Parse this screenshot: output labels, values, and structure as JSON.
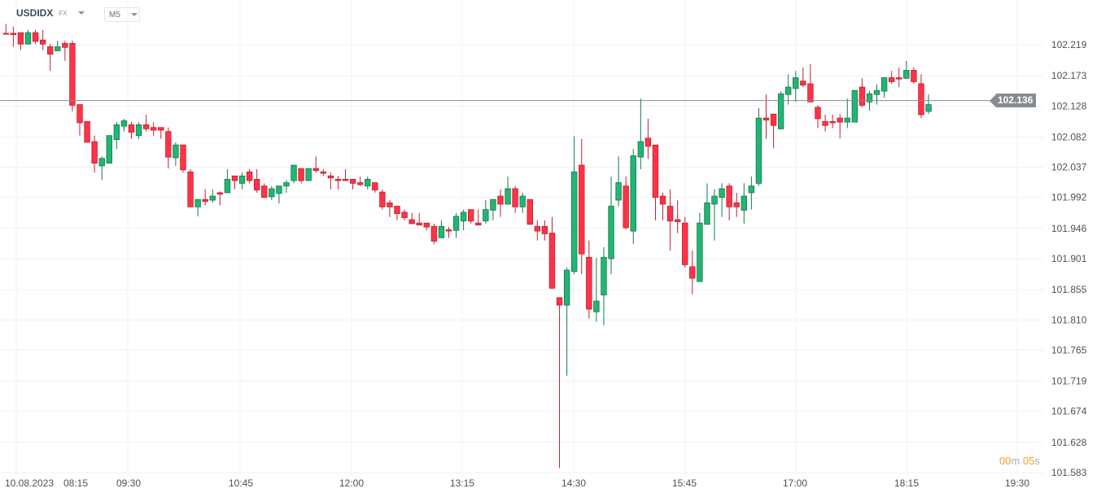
{
  "header": {
    "symbol": "USDIDX",
    "market": "FX",
    "timeframe": "M5"
  },
  "timer": {
    "minutes": "00",
    "m": "m",
    "seconds": "05",
    "s": "s"
  },
  "current_price": "102.136",
  "colors": {
    "up": "#22b573",
    "up_border": "#137a4c",
    "down": "#ff3347",
    "down_border": "#c01f2f",
    "price_line": "#858d92",
    "timer": "#f7a21b",
    "grid": "#f0f1f2"
  },
  "chart_data": {
    "type": "candlestick",
    "interval": "M5",
    "date": "10.08.2023",
    "x_tick_labels": [
      "10.08.2023",
      "08:15",
      "09:30",
      "10:45",
      "12:00",
      "13:15",
      "14:30",
      "15:45",
      "17:00",
      "18:15",
      "19:30"
    ],
    "y_tick_labels": [
      "102.219",
      "102.173",
      "102.128",
      "102.082",
      "102.037",
      "101.992",
      "101.946",
      "101.901",
      "101.855",
      "101.810",
      "101.765",
      "101.719",
      "101.674",
      "101.628",
      "101.583"
    ],
    "ylim": [
      101.583,
      102.219
    ],
    "grid": true,
    "last_price": 102.136,
    "ohlc_fields": [
      "open",
      "high",
      "low",
      "close"
    ],
    "candles": [
      [
        102.236,
        102.25,
        102.235,
        102.235
      ],
      [
        102.236,
        102.246,
        102.216,
        102.234
      ],
      [
        102.237,
        102.237,
        102.211,
        102.22
      ],
      [
        102.22,
        102.241,
        102.22,
        102.237
      ],
      [
        102.237,
        102.241,
        102.22,
        102.224
      ],
      [
        102.226,
        102.241,
        102.211,
        102.22
      ],
      [
        102.216,
        102.22,
        102.18,
        102.205
      ],
      [
        102.21,
        102.225,
        102.21,
        102.216
      ],
      [
        102.221,
        102.225,
        102.195,
        102.215
      ],
      [
        102.221,
        102.225,
        102.12,
        102.129
      ],
      [
        102.13,
        102.13,
        102.084,
        102.103
      ],
      [
        102.105,
        102.105,
        102.074,
        102.074
      ],
      [
        102.075,
        102.084,
        102.029,
        102.043
      ],
      [
        102.039,
        102.053,
        102.018,
        102.05
      ],
      [
        102.043,
        102.084,
        102.043,
        102.084
      ],
      [
        102.078,
        102.104,
        102.064,
        102.1
      ],
      [
        102.098,
        102.109,
        102.09,
        102.106
      ],
      [
        102.1,
        102.104,
        102.079,
        102.089
      ],
      [
        102.084,
        102.104,
        102.079,
        102.1
      ],
      [
        102.1,
        102.115,
        102.09,
        102.094
      ],
      [
        102.096,
        102.104,
        102.084,
        102.092
      ],
      [
        102.096,
        102.096,
        102.079,
        102.092
      ],
      [
        102.09,
        102.096,
        102.035,
        102.052
      ],
      [
        102.051,
        102.074,
        102.039,
        102.07
      ],
      [
        102.07,
        102.07,
        102.029,
        102.033
      ],
      [
        102.03,
        102.034,
        101.978,
        101.978
      ],
      [
        101.978,
        101.989,
        101.964,
        101.989
      ],
      [
        101.989,
        102.004,
        101.98,
        101.986
      ],
      [
        101.988,
        102.004,
        101.984,
        101.994
      ],
      [
        101.999,
        102.001,
        101.98,
        101.997
      ],
      [
        101.999,
        102.034,
        101.999,
        102.019
      ],
      [
        102.024,
        102.024,
        102.004,
        102.017
      ],
      [
        102.013,
        102.029,
        102.004,
        102.024
      ],
      [
        102.03,
        102.034,
        102.013,
        102.017
      ],
      [
        102.019,
        102.034,
        101.999,
        102.003
      ],
      [
        102.009,
        102.013,
        101.992,
        101.992
      ],
      [
        101.993,
        102.009,
        101.988,
        102.005
      ],
      [
        101.998,
        102.009,
        101.983,
        102.009
      ],
      [
        102.009,
        102.018,
        101.999,
        102.014
      ],
      [
        102.017,
        102.04,
        102.013,
        102.04
      ],
      [
        102.035,
        102.035,
        102.013,
        102.017
      ],
      [
        102.017,
        102.035,
        102.017,
        102.035
      ],
      [
        102.035,
        102.053,
        102.029,
        102.032
      ],
      [
        102.03,
        102.034,
        102.024,
        102.028
      ],
      [
        102.024,
        102.029,
        102.004,
        102.021
      ],
      [
        102.019,
        102.024,
        102.004,
        102.017
      ],
      [
        102.019,
        102.034,
        102.017,
        102.017
      ],
      [
        102.019,
        102.019,
        102.004,
        102.013
      ],
      [
        102.014,
        102.023,
        102.009,
        102.011
      ],
      [
        102.009,
        102.023,
        102.004,
        102.019
      ],
      [
        102.014,
        102.014,
        101.999,
        102.003
      ],
      [
        102.0,
        102.004,
        101.974,
        101.978
      ],
      [
        101.984,
        101.988,
        101.963,
        101.978
      ],
      [
        101.979,
        101.979,
        101.958,
        101.968
      ],
      [
        101.97,
        101.974,
        101.958,
        101.962
      ],
      [
        101.959,
        101.969,
        101.953,
        101.953
      ],
      [
        101.954,
        101.969,
        101.951,
        101.951
      ],
      [
        101.954,
        101.954,
        101.943,
        101.948
      ],
      [
        101.949,
        101.953,
        101.923,
        101.927
      ],
      [
        101.932,
        101.958,
        101.932,
        101.949
      ],
      [
        101.944,
        101.948,
        101.932,
        101.942
      ],
      [
        101.943,
        101.969,
        101.932,
        101.964
      ],
      [
        101.957,
        101.974,
        101.943,
        101.97
      ],
      [
        101.974,
        101.974,
        101.953,
        101.957
      ],
      [
        101.954,
        101.974,
        101.951,
        101.951
      ],
      [
        101.957,
        101.988,
        101.953,
        101.974
      ],
      [
        101.973,
        101.989,
        101.958,
        101.989
      ],
      [
        101.994,
        102.004,
        101.963,
        101.982
      ],
      [
        101.982,
        102.023,
        101.982,
        102.005
      ],
      [
        102.005,
        102.009,
        101.969,
        101.978
      ],
      [
        101.978,
        101.999,
        101.969,
        101.994
      ],
      [
        101.989,
        101.989,
        101.952,
        101.952
      ],
      [
        101.949,
        101.958,
        101.928,
        101.942
      ],
      [
        101.949,
        101.958,
        101.928,
        101.938
      ],
      [
        101.939,
        101.963,
        101.857,
        101.857
      ],
      [
        101.843,
        101.843,
        101.59,
        101.832
      ],
      [
        101.832,
        101.888,
        101.727,
        101.884
      ],
      [
        101.882,
        102.083,
        101.878,
        102.03
      ],
      [
        102.04,
        102.079,
        101.878,
        101.908
      ],
      [
        101.903,
        101.928,
        101.812,
        101.826
      ],
      [
        101.822,
        101.902,
        101.807,
        101.838
      ],
      [
        101.847,
        101.918,
        101.802,
        101.903
      ],
      [
        101.901,
        102.023,
        101.878,
        101.979
      ],
      [
        101.988,
        102.053,
        101.979,
        102.014
      ],
      [
        102.009,
        102.023,
        101.944,
        101.947
      ],
      [
        101.942,
        102.064,
        101.923,
        102.054
      ],
      [
        102.052,
        102.139,
        102.034,
        102.075
      ],
      [
        102.08,
        102.109,
        102.049,
        102.068
      ],
      [
        102.07,
        102.07,
        101.958,
        101.992
      ],
      [
        101.994,
        101.999,
        101.958,
        101.982
      ],
      [
        101.979,
        102.004,
        101.913,
        101.957
      ],
      [
        101.959,
        101.988,
        101.939,
        101.956
      ],
      [
        101.954,
        101.963,
        101.888,
        101.892
      ],
      [
        101.889,
        101.913,
        101.848,
        101.872
      ],
      [
        101.867,
        101.969,
        101.867,
        101.954
      ],
      [
        101.952,
        102.013,
        101.952,
        101.984
      ],
      [
        101.982,
        102.004,
        101.928,
        101.994
      ],
      [
        101.992,
        102.013,
        101.963,
        102.005
      ],
      [
        102.009,
        102.013,
        101.958,
        101.978
      ],
      [
        101.984,
        101.999,
        101.963,
        101.978
      ],
      [
        101.973,
        102.013,
        101.953,
        101.994
      ],
      [
        101.999,
        102.023,
        101.974,
        102.009
      ],
      [
        102.013,
        102.125,
        102.009,
        102.11
      ],
      [
        102.11,
        102.145,
        102.079,
        102.107
      ],
      [
        102.116,
        102.116,
        102.065,
        102.099
      ],
      [
        102.094,
        102.15,
        102.094,
        102.146
      ],
      [
        102.145,
        102.175,
        102.13,
        102.156
      ],
      [
        102.154,
        102.18,
        102.134,
        102.17
      ],
      [
        102.165,
        102.185,
        102.156,
        102.159
      ],
      [
        102.161,
        102.19,
        102.134,
        102.134
      ],
      [
        102.126,
        102.129,
        102.095,
        102.109
      ],
      [
        102.105,
        102.115,
        102.09,
        102.099
      ],
      [
        102.105,
        102.115,
        102.095,
        102.103
      ],
      [
        102.11,
        102.116,
        102.08,
        102.104
      ],
      [
        102.104,
        102.139,
        102.095,
        102.11
      ],
      [
        102.104,
        102.151,
        102.104,
        102.151
      ],
      [
        102.156,
        102.169,
        102.126,
        102.129
      ],
      [
        102.134,
        102.15,
        102.121,
        102.146
      ],
      [
        102.145,
        102.16,
        102.13,
        102.151
      ],
      [
        102.15,
        102.171,
        102.14,
        102.17
      ],
      [
        102.17,
        102.18,
        102.161,
        102.164
      ],
      [
        102.17,
        102.185,
        102.156,
        102.168
      ],
      [
        102.169,
        102.195,
        102.169,
        102.181
      ],
      [
        102.181,
        102.185,
        102.161,
        102.164
      ],
      [
        102.161,
        102.175,
        102.11,
        102.115
      ],
      [
        102.12,
        102.145,
        102.116,
        102.13
      ]
    ]
  }
}
